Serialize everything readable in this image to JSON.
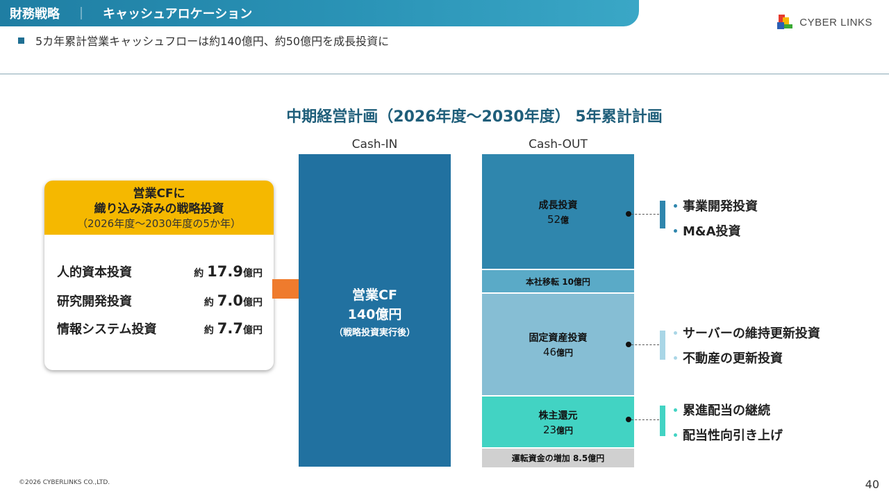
{
  "header": {
    "section": "財務戦略",
    "separator": "｜",
    "title": "キャッシュアロケーション"
  },
  "logo": {
    "text": "CYBER LINKS",
    "colors": [
      "#e63b2e",
      "#f5b800",
      "#2b5fb3",
      "#3aaa35"
    ]
  },
  "subtitle": "5カ年累計営業キャッシュフローは約140億円、約50億円を成長投資に",
  "plan_title": "中期経営計画（2026年度～2030年度） 5年累計計画",
  "columns": {
    "cash_in": "Cash-IN",
    "cash_out": "Cash-OUT"
  },
  "card": {
    "heading_line1": "営業CFに",
    "heading_line2": "織り込み済みの戦略投資",
    "heading_line3": "（2026年度～2030年度の5か年）",
    "items": [
      {
        "name": "人的資本投資",
        "prefix": "約",
        "value": "17.9",
        "unit": "億円"
      },
      {
        "name": "研究開発投資",
        "prefix": "約",
        "value": "7.0",
        "unit": "億円"
      },
      {
        "name": "情報システム投資",
        "prefix": "約",
        "value": "7.7",
        "unit": "億円"
      }
    ]
  },
  "cash_in": {
    "label": "営業CF",
    "value": "140億円",
    "note": "（戦略投資実行後）",
    "amount": 140,
    "color": "#2171a0"
  },
  "cash_out": [
    {
      "key": "growth",
      "label": "成長投資",
      "value_num": "52",
      "value_unit": "億",
      "amount": 52,
      "color": "#2f86ad"
    },
    {
      "key": "hq",
      "label": "本社移転 10億円",
      "amount": 10,
      "color": "#5aaac7"
    },
    {
      "key": "fixed",
      "label": "固定資産投資",
      "value_num": "46",
      "value_unit": "億円",
      "amount": 46,
      "color": "#86bed4"
    },
    {
      "key": "shareholder",
      "label": "株主還元",
      "value_num": "23",
      "value_unit": "億円",
      "amount": 23,
      "color": "#42d3c3"
    },
    {
      "key": "wc",
      "label": "運転資金の増加 8.5億円",
      "amount": 8.5,
      "color": "#d0d0d0"
    }
  ],
  "details": {
    "growth": [
      "事業開発投資",
      "M&A投資"
    ],
    "fixed": [
      "サーバーの維持更新投資",
      "不動産の更新投資"
    ],
    "shareholder": [
      "累進配当の継続",
      "配当性向引き上げ"
    ]
  },
  "footer": "©2026 CYBERLINKS CO.,LTD.",
  "page_number": "40"
}
